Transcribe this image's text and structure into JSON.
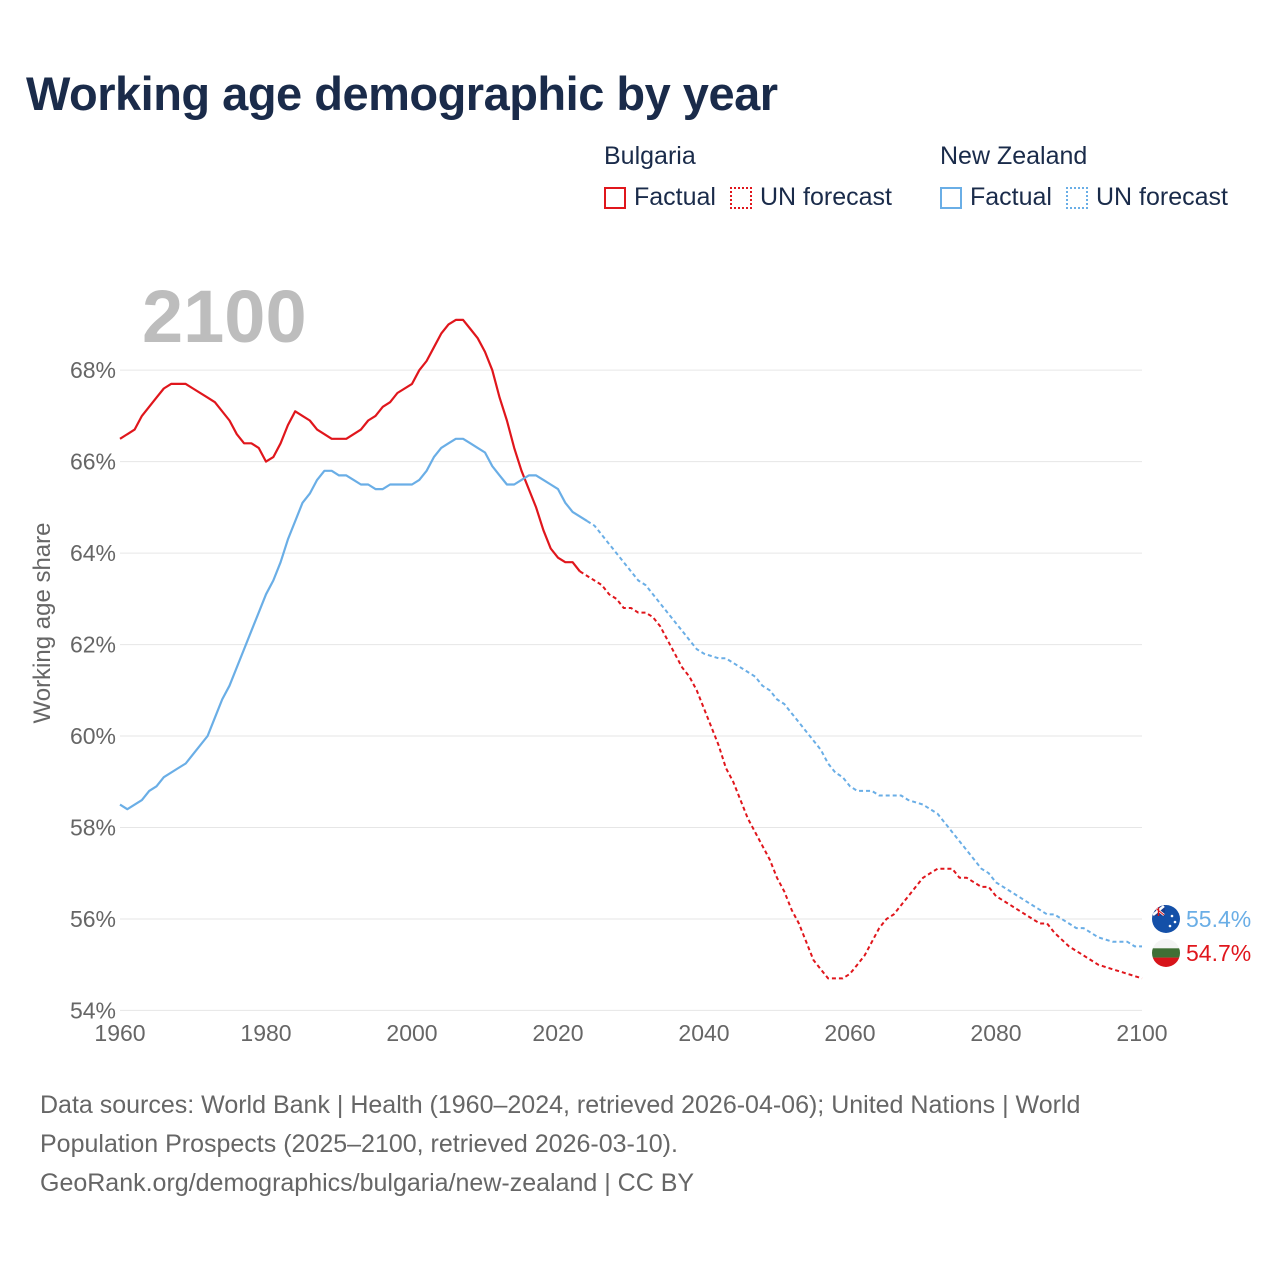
{
  "title": "Working age demographic by year",
  "legend": {
    "groups": [
      {
        "name": "Bulgaria",
        "factual_label": "Factual",
        "forecast_label": "UN forecast",
        "color": "#e0161c"
      },
      {
        "name": "New Zealand",
        "factual_label": "Factual",
        "forecast_label": "UN forecast",
        "color": "#6aaee6"
      }
    ]
  },
  "year_display": "2100",
  "footer": {
    "line1": "Data sources: World Bank | Health (1960–2024, retrieved 2026-04-06); United Nations | World",
    "line2": "Population Prospects (2025–2100, retrieved 2026-03-10).",
    "line3": "GeoRank.org/demographics/bulgaria/new-zealand | CC BY"
  },
  "chart_data": {
    "type": "line",
    "title": "Working age demographic by year",
    "xlabel": "",
    "ylabel": "Working age share",
    "xlim": [
      1960,
      2100
    ],
    "ylim": [
      53.9,
      69.6
    ],
    "xticks": [
      1960,
      1980,
      2000,
      2020,
      2040,
      2060,
      2080,
      2100
    ],
    "xtick_labels": [
      "1960",
      "1980",
      "2000",
      "2020",
      "2040",
      "2060",
      "2080",
      "2100"
    ],
    "yticks": [
      54,
      56,
      58,
      60,
      62,
      64,
      66,
      68
    ],
    "ytick_labels": [
      "54%",
      "56%",
      "58%",
      "60%",
      "62%",
      "64%",
      "66%",
      "68%"
    ],
    "factual_end_year": 2024,
    "series": [
      {
        "name": "Bulgaria",
        "color": "#e0161c",
        "end_label": "54.7%",
        "points": [
          [
            1960,
            66.5
          ],
          [
            1962,
            66.7
          ],
          [
            1963,
            67.0
          ],
          [
            1965,
            67.4
          ],
          [
            1966,
            67.6
          ],
          [
            1967,
            67.7
          ],
          [
            1969,
            67.7
          ],
          [
            1970,
            67.6
          ],
          [
            1972,
            67.4
          ],
          [
            1973,
            67.3
          ],
          [
            1975,
            66.9
          ],
          [
            1976,
            66.6
          ],
          [
            1977,
            66.4
          ],
          [
            1978,
            66.4
          ],
          [
            1979,
            66.3
          ],
          [
            1980,
            66.0
          ],
          [
            1981,
            66.1
          ],
          [
            1982,
            66.4
          ],
          [
            1983,
            66.8
          ],
          [
            1984,
            67.1
          ],
          [
            1985,
            67.0
          ],
          [
            1986,
            66.9
          ],
          [
            1987,
            66.7
          ],
          [
            1989,
            66.5
          ],
          [
            1991,
            66.5
          ],
          [
            1993,
            66.7
          ],
          [
            1994,
            66.9
          ],
          [
            1995,
            67.0
          ],
          [
            1996,
            67.2
          ],
          [
            1997,
            67.3
          ],
          [
            1998,
            67.5
          ],
          [
            2000,
            67.7
          ],
          [
            2001,
            68.0
          ],
          [
            2002,
            68.2
          ],
          [
            2003,
            68.5
          ],
          [
            2004,
            68.8
          ],
          [
            2005,
            69.0
          ],
          [
            2006,
            69.1
          ],
          [
            2007,
            69.1
          ],
          [
            2008,
            68.9
          ],
          [
            2009,
            68.7
          ],
          [
            2010,
            68.4
          ],
          [
            2011,
            68.0
          ],
          [
            2012,
            67.4
          ],
          [
            2013,
            66.9
          ],
          [
            2014,
            66.3
          ],
          [
            2015,
            65.8
          ],
          [
            2016,
            65.4
          ],
          [
            2017,
            65.0
          ],
          [
            2018,
            64.5
          ],
          [
            2019,
            64.1
          ],
          [
            2020,
            63.9
          ],
          [
            2021,
            63.8
          ],
          [
            2022,
            63.8
          ],
          [
            2023,
            63.6
          ],
          [
            2025,
            63.4
          ],
          [
            2026,
            63.3
          ],
          [
            2027,
            63.1
          ],
          [
            2028,
            63.0
          ],
          [
            2029,
            62.8
          ],
          [
            2030,
            62.8
          ],
          [
            2031,
            62.7
          ],
          [
            2032,
            62.7
          ],
          [
            2033,
            62.6
          ],
          [
            2034,
            62.4
          ],
          [
            2035,
            62.1
          ],
          [
            2036,
            61.8
          ],
          [
            2037,
            61.5
          ],
          [
            2038,
            61.3
          ],
          [
            2039,
            61.0
          ],
          [
            2040,
            60.6
          ],
          [
            2041,
            60.2
          ],
          [
            2042,
            59.8
          ],
          [
            2043,
            59.3
          ],
          [
            2044,
            59.0
          ],
          [
            2045,
            58.6
          ],
          [
            2046,
            58.2
          ],
          [
            2047,
            57.9
          ],
          [
            2048,
            57.6
          ],
          [
            2049,
            57.3
          ],
          [
            2050,
            56.9
          ],
          [
            2051,
            56.6
          ],
          [
            2052,
            56.2
          ],
          [
            2053,
            55.9
          ],
          [
            2054,
            55.5
          ],
          [
            2055,
            55.1
          ],
          [
            2056,
            54.9
          ],
          [
            2057,
            54.7
          ],
          [
            2058,
            54.7
          ],
          [
            2059,
            54.7
          ],
          [
            2060,
            54.8
          ],
          [
            2061,
            55.0
          ],
          [
            2062,
            55.2
          ],
          [
            2063,
            55.5
          ],
          [
            2064,
            55.8
          ],
          [
            2065,
            56.0
          ],
          [
            2066,
            56.1
          ],
          [
            2067,
            56.3
          ],
          [
            2068,
            56.5
          ],
          [
            2069,
            56.7
          ],
          [
            2070,
            56.9
          ],
          [
            2071,
            57.0
          ],
          [
            2072,
            57.1
          ],
          [
            2073,
            57.1
          ],
          [
            2074,
            57.1
          ],
          [
            2075,
            56.9
          ],
          [
            2076,
            56.9
          ],
          [
            2077,
            56.8
          ],
          [
            2078,
            56.7
          ],
          [
            2079,
            56.7
          ],
          [
            2080,
            56.5
          ],
          [
            2082,
            56.3
          ],
          [
            2084,
            56.1
          ],
          [
            2086,
            55.9
          ],
          [
            2087,
            55.9
          ],
          [
            2088,
            55.7
          ],
          [
            2090,
            55.4
          ],
          [
            2092,
            55.2
          ],
          [
            2094,
            55.0
          ],
          [
            2096,
            54.9
          ],
          [
            2098,
            54.8
          ],
          [
            2100,
            54.7
          ]
        ]
      },
      {
        "name": "New Zealand",
        "color": "#6aaee6",
        "end_label": "55.4%",
        "points": [
          [
            1960,
            58.5
          ],
          [
            1961,
            58.4
          ],
          [
            1963,
            58.6
          ],
          [
            1964,
            58.8
          ],
          [
            1965,
            58.9
          ],
          [
            1966,
            59.1
          ],
          [
            1968,
            59.3
          ],
          [
            1969,
            59.4
          ],
          [
            1970,
            59.6
          ],
          [
            1972,
            60.0
          ],
          [
            1973,
            60.4
          ],
          [
            1974,
            60.8
          ],
          [
            1975,
            61.1
          ],
          [
            1976,
            61.5
          ],
          [
            1977,
            61.9
          ],
          [
            1978,
            62.3
          ],
          [
            1979,
            62.7
          ],
          [
            1980,
            63.1
          ],
          [
            1981,
            63.4
          ],
          [
            1982,
            63.8
          ],
          [
            1983,
            64.3
          ],
          [
            1984,
            64.7
          ],
          [
            1985,
            65.1
          ],
          [
            1986,
            65.3
          ],
          [
            1987,
            65.6
          ],
          [
            1988,
            65.8
          ],
          [
            1989,
            65.8
          ],
          [
            1990,
            65.7
          ],
          [
            1991,
            65.7
          ],
          [
            1992,
            65.6
          ],
          [
            1993,
            65.5
          ],
          [
            1994,
            65.5
          ],
          [
            1995,
            65.4
          ],
          [
            1996,
            65.4
          ],
          [
            1997,
            65.5
          ],
          [
            1999,
            65.5
          ],
          [
            2000,
            65.5
          ],
          [
            2001,
            65.6
          ],
          [
            2002,
            65.8
          ],
          [
            2003,
            66.1
          ],
          [
            2004,
            66.3
          ],
          [
            2005,
            66.4
          ],
          [
            2006,
            66.5
          ],
          [
            2007,
            66.5
          ],
          [
            2008,
            66.4
          ],
          [
            2009,
            66.3
          ],
          [
            2010,
            66.2
          ],
          [
            2011,
            65.9
          ],
          [
            2012,
            65.7
          ],
          [
            2013,
            65.5
          ],
          [
            2014,
            65.5
          ],
          [
            2015,
            65.6
          ],
          [
            2016,
            65.7
          ],
          [
            2017,
            65.7
          ],
          [
            2018,
            65.6
          ],
          [
            2019,
            65.5
          ],
          [
            2020,
            65.4
          ],
          [
            2021,
            65.1
          ],
          [
            2022,
            64.9
          ],
          [
            2024,
            64.7
          ],
          [
            2025,
            64.6
          ],
          [
            2026,
            64.4
          ],
          [
            2027,
            64.2
          ],
          [
            2028,
            64.0
          ],
          [
            2029,
            63.8
          ],
          [
            2030,
            63.6
          ],
          [
            2031,
            63.4
          ],
          [
            2032,
            63.3
          ],
          [
            2033,
            63.1
          ],
          [
            2034,
            62.9
          ],
          [
            2035,
            62.7
          ],
          [
            2036,
            62.5
          ],
          [
            2037,
            62.3
          ],
          [
            2038,
            62.1
          ],
          [
            2039,
            61.9
          ],
          [
            2040,
            61.8
          ],
          [
            2042,
            61.7
          ],
          [
            2043,
            61.7
          ],
          [
            2044,
            61.6
          ],
          [
            2046,
            61.4
          ],
          [
            2047,
            61.3
          ],
          [
            2048,
            61.1
          ],
          [
            2049,
            61.0
          ],
          [
            2050,
            60.8
          ],
          [
            2051,
            60.7
          ],
          [
            2052,
            60.5
          ],
          [
            2053,
            60.3
          ],
          [
            2054,
            60.1
          ],
          [
            2055,
            59.9
          ],
          [
            2056,
            59.7
          ],
          [
            2057,
            59.4
          ],
          [
            2058,
            59.2
          ],
          [
            2059,
            59.1
          ],
          [
            2060,
            58.9
          ],
          [
            2061,
            58.8
          ],
          [
            2062,
            58.8
          ],
          [
            2063,
            58.8
          ],
          [
            2064,
            58.7
          ],
          [
            2065,
            58.7
          ],
          [
            2066,
            58.7
          ],
          [
            2067,
            58.7
          ],
          [
            2068,
            58.6
          ],
          [
            2070,
            58.5
          ],
          [
            2071,
            58.4
          ],
          [
            2072,
            58.3
          ],
          [
            2073,
            58.1
          ],
          [
            2074,
            57.9
          ],
          [
            2075,
            57.7
          ],
          [
            2076,
            57.5
          ],
          [
            2077,
            57.3
          ],
          [
            2078,
            57.1
          ],
          [
            2079,
            57.0
          ],
          [
            2080,
            56.8
          ],
          [
            2082,
            56.6
          ],
          [
            2084,
            56.4
          ],
          [
            2086,
            56.2
          ],
          [
            2087,
            56.1
          ],
          [
            2088,
            56.1
          ],
          [
            2090,
            55.9
          ],
          [
            2091,
            55.8
          ],
          [
            2092,
            55.8
          ],
          [
            2093,
            55.7
          ],
          [
            2094,
            55.6
          ],
          [
            2096,
            55.5
          ],
          [
            2097,
            55.5
          ],
          [
            2098,
            55.5
          ],
          [
            2099,
            55.4
          ],
          [
            2100,
            55.4
          ]
        ]
      }
    ]
  }
}
